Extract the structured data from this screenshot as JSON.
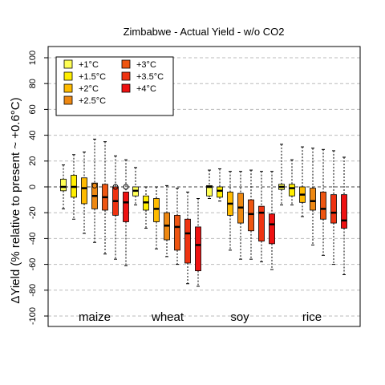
{
  "chart_data": {
    "type": "boxplot",
    "title": "Zimbabwe - Actual Yield - w/o CO2",
    "xlabel": "",
    "ylabel": "ΔYield (% relative to present ~ +0.6°C)",
    "ylim": [
      -107,
      108
    ],
    "yticks": [
      -100,
      -80,
      -60,
      -40,
      -20,
      0,
      20,
      40,
      60,
      80,
      100
    ],
    "grid": true,
    "legend_position": "top-left",
    "legend": [
      {
        "label": "+1°C",
        "color": "#ffff55"
      },
      {
        "label": "+1.5°C",
        "color": "#ffee00"
      },
      {
        "label": "+2°C",
        "color": "#ffbb00"
      },
      {
        "label": "+2.5°C",
        "color": "#ee8811"
      },
      {
        "label": "+3°C",
        "color": "#ee5511"
      },
      {
        "label": "+3.5°C",
        "color": "#ee3311"
      },
      {
        "label": "+4°C",
        "color": "#ee1111"
      }
    ],
    "categories": [
      "maize",
      "wheat",
      "soy",
      "rice"
    ],
    "series": [
      {
        "crop": "maize",
        "boxes": [
          {
            "level": 0,
            "lo": -17,
            "q1": -3,
            "med": 0,
            "q3": 6,
            "hi": 17,
            "outliers": []
          },
          {
            "level": 1,
            "lo": -25,
            "q1": -8,
            "med": 0,
            "q3": 9,
            "hi": 25,
            "outliers": []
          },
          {
            "level": 2,
            "lo": -36,
            "q1": -13,
            "med": -1,
            "q3": 7,
            "hi": 27,
            "outliers": []
          },
          {
            "level": 3,
            "lo": -43,
            "q1": -17,
            "med": -7,
            "q3": 3,
            "hi": 37,
            "outliers": [
              1
            ]
          },
          {
            "level": 4,
            "lo": -52,
            "q1": -18,
            "med": -8,
            "q3": 2,
            "hi": 35,
            "outliers": []
          },
          {
            "level": 5,
            "lo": -56,
            "q1": -22,
            "med": -11,
            "q3": 0,
            "hi": 24,
            "outliers": [
              0
            ]
          },
          {
            "level": 6,
            "lo": -61,
            "q1": -27,
            "med": -12,
            "q3": -4,
            "hi": 21,
            "outliers": [
              0
            ]
          }
        ]
      },
      {
        "crop": "wheat",
        "boxes": [
          {
            "level": 0,
            "lo": -14,
            "q1": -7,
            "med": -3,
            "q3": 0,
            "hi": 15,
            "outliers": []
          },
          {
            "level": 1,
            "lo": -32,
            "q1": -18,
            "med": -12,
            "q3": -7,
            "hi": 0,
            "outliers": []
          },
          {
            "level": 2,
            "lo": -48,
            "q1": -27,
            "med": -17,
            "q3": -9,
            "hi": 0,
            "outliers": []
          },
          {
            "level": 3,
            "lo": -54,
            "q1": -41,
            "med": -30,
            "q3": -20,
            "hi": 1,
            "outliers": []
          },
          {
            "level": 4,
            "lo": -60,
            "q1": -49,
            "med": -31,
            "q3": -22,
            "hi": -1,
            "outliers": []
          },
          {
            "level": 5,
            "lo": -75,
            "q1": -59,
            "med": -36,
            "q3": -25,
            "hi": -4,
            "outliers": []
          },
          {
            "level": 6,
            "lo": -77,
            "q1": -65,
            "med": -45,
            "q3": -31,
            "hi": -9,
            "outliers": []
          }
        ]
      },
      {
        "crop": "soy",
        "boxes": [
          {
            "level": 0,
            "lo": -9,
            "q1": -7,
            "med": 0,
            "q3": 1,
            "hi": 13,
            "outliers": []
          },
          {
            "level": 1,
            "lo": -11,
            "q1": -8,
            "med": -3,
            "q3": 0,
            "hi": 14,
            "outliers": []
          },
          {
            "level": 2,
            "lo": -49,
            "q1": -22,
            "med": -13,
            "q3": -4,
            "hi": 12,
            "outliers": []
          },
          {
            "level": 3,
            "lo": -56,
            "q1": -28,
            "med": -16,
            "q3": -5,
            "hi": 12,
            "outliers": []
          },
          {
            "level": 4,
            "lo": -56,
            "q1": -34,
            "med": -21,
            "q3": -10,
            "hi": 13,
            "outliers": []
          },
          {
            "level": 5,
            "lo": -58,
            "q1": -42,
            "med": -20,
            "q3": -15,
            "hi": 12,
            "outliers": []
          },
          {
            "level": 6,
            "lo": -64,
            "q1": -44,
            "med": -29,
            "q3": -21,
            "hi": 12,
            "outliers": []
          }
        ]
      },
      {
        "crop": "rice",
        "boxes": [
          {
            "level": 0,
            "lo": -14,
            "q1": -2,
            "med": 0,
            "q3": 2,
            "hi": 33,
            "outliers": []
          },
          {
            "level": 1,
            "lo": -14,
            "q1": -7,
            "med": -1,
            "q3": 2,
            "hi": 21,
            "outliers": []
          },
          {
            "level": 2,
            "lo": -23,
            "q1": -12,
            "med": -6,
            "q3": 0,
            "hi": 31,
            "outliers": []
          },
          {
            "level": 3,
            "lo": -45,
            "q1": -18,
            "med": -11,
            "q3": -1,
            "hi": 30,
            "outliers": []
          },
          {
            "level": 4,
            "lo": -53,
            "q1": -25,
            "med": -17,
            "q3": -4,
            "hi": 29,
            "outliers": []
          },
          {
            "level": 5,
            "lo": -60,
            "q1": -28,
            "med": -20,
            "q3": -6,
            "hi": 28,
            "outliers": []
          },
          {
            "level": 6,
            "lo": -68,
            "q1": -32,
            "med": -26,
            "q3": -6,
            "hi": 23,
            "outliers": []
          }
        ]
      }
    ]
  }
}
